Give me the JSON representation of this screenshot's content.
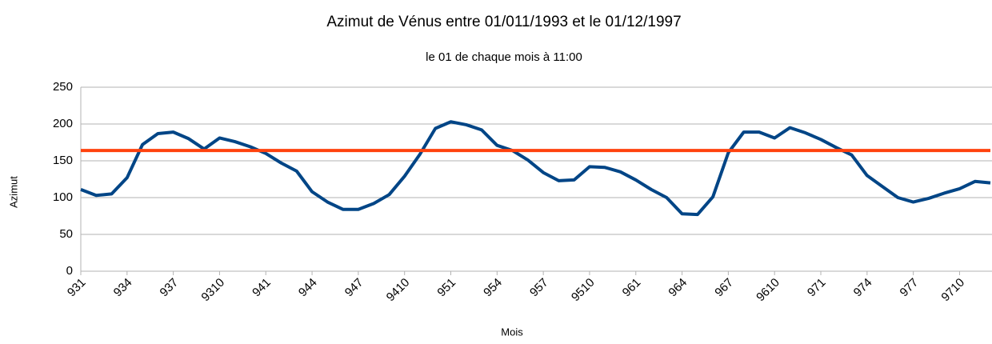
{
  "chart_data": {
    "type": "line",
    "title": "Azimut de Vénus entre 01/011/1993 et le 01/12/1997",
    "subtitle": "le 01 de chaque mois à 11:00",
    "x_label": "Mois",
    "y_label": "Azimut",
    "categories": [
      "931",
      null,
      null,
      "934",
      null,
      null,
      "937",
      null,
      null,
      "9310",
      null,
      null,
      "941",
      null,
      null,
      "944",
      null,
      null,
      "947",
      null,
      null,
      "9410",
      null,
      null,
      "951",
      null,
      null,
      "954",
      null,
      null,
      "957",
      null,
      null,
      "9510",
      null,
      null,
      "961",
      null,
      null,
      "964",
      null,
      null,
      "967",
      null,
      null,
      "9610",
      null,
      null,
      "971",
      null,
      null,
      "974",
      null,
      null,
      "977",
      null,
      null,
      "9710",
      null,
      null
    ],
    "series": [
      {
        "color": "#004586",
        "values": [
          111,
          103,
          105,
          127,
          172,
          187,
          189,
          180,
          166,
          181,
          176,
          169,
          160,
          147,
          136,
          108,
          94,
          84,
          84,
          92,
          104,
          129,
          159,
          194,
          203,
          199,
          192,
          171,
          164,
          151,
          134,
          123,
          124,
          142,
          141,
          135,
          124,
          111,
          100,
          78,
          77,
          101,
          161,
          189,
          189,
          181,
          195,
          188,
          179,
          168,
          158,
          130,
          115,
          100,
          94,
          99,
          106,
          112,
          122,
          120
        ]
      },
      {
        "color": "#ff420e",
        "values": [
          164,
          164,
          164,
          164,
          164,
          164,
          164,
          164,
          164,
          164,
          164,
          164,
          164,
          164,
          164,
          164,
          164,
          164,
          164,
          164,
          164,
          164,
          164,
          164,
          164,
          164,
          164,
          164,
          164,
          164,
          164,
          164,
          164,
          164,
          164,
          164,
          164,
          164,
          164,
          164,
          164,
          164,
          164,
          164,
          164,
          164,
          164,
          164,
          164,
          164,
          164,
          164,
          164,
          164,
          164,
          164,
          164,
          164,
          164,
          164
        ]
      }
    ],
    "ylim": [
      0,
      250
    ],
    "yticks": [
      0,
      50,
      100,
      150,
      200,
      250
    ],
    "grid": true
  }
}
